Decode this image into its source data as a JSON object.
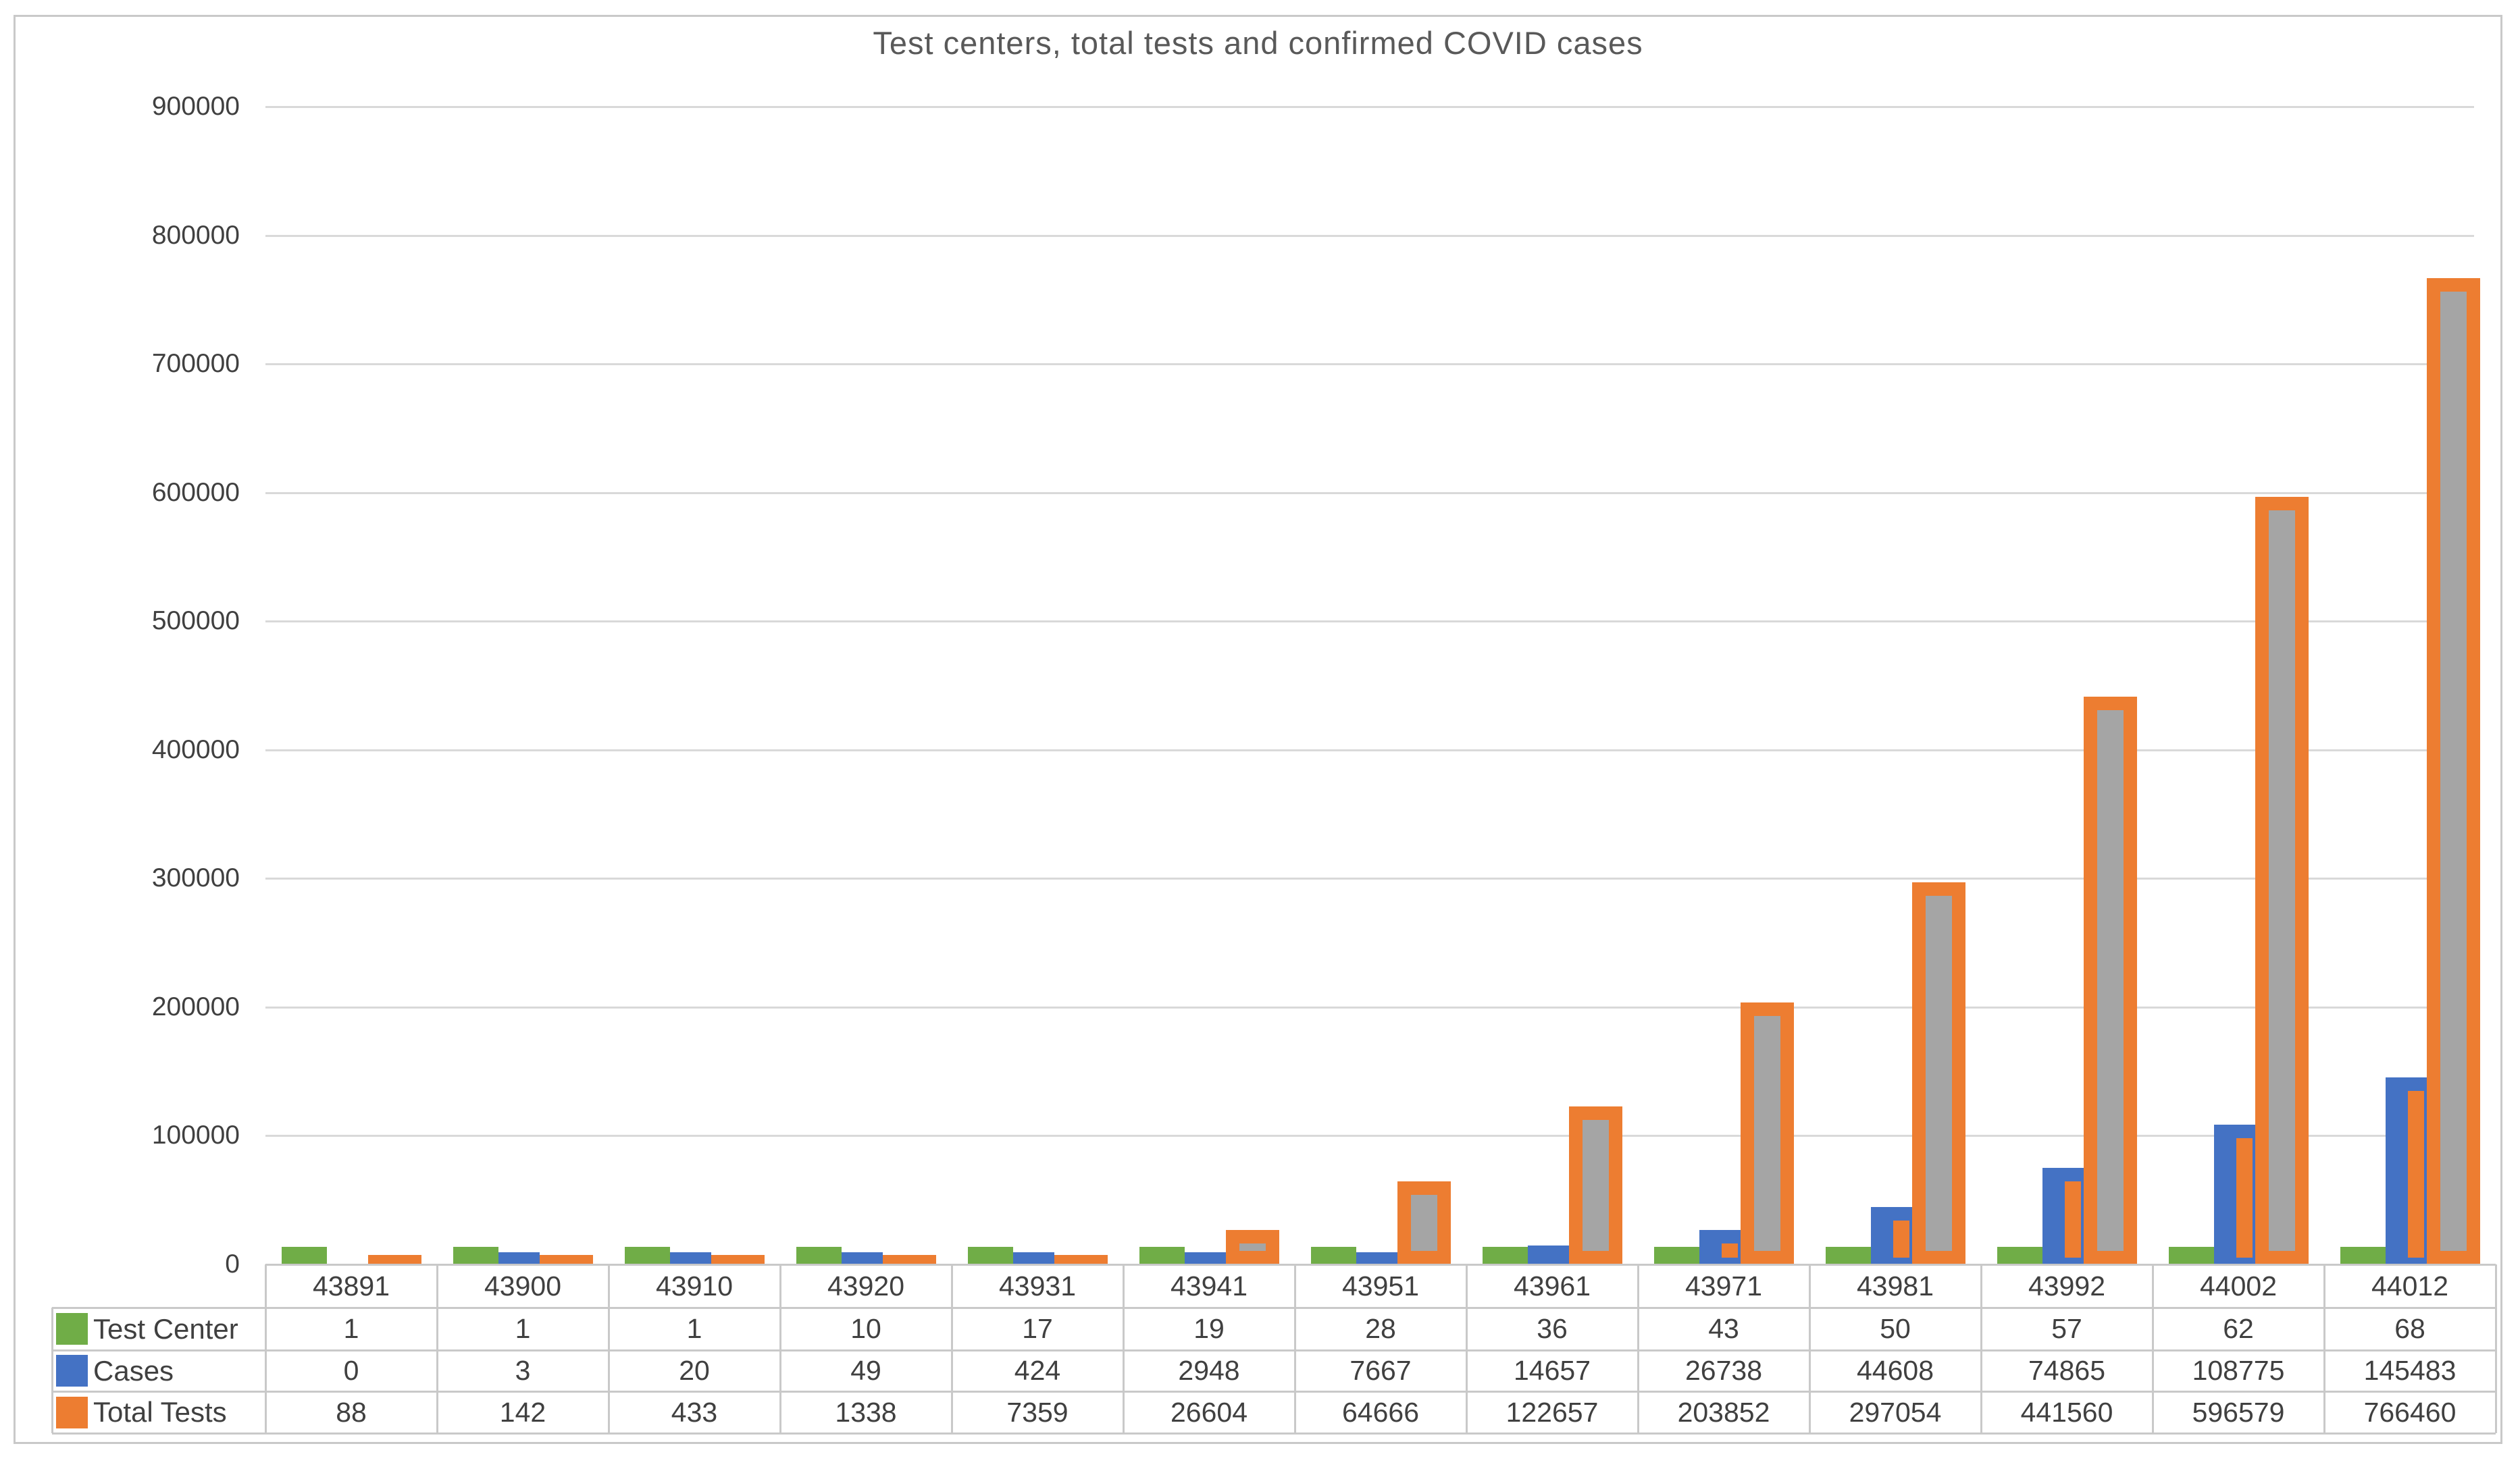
{
  "chart_data": {
    "type": "bar",
    "title": "Test centers, total tests and confirmed COVID cases",
    "categories": [
      "43891",
      "43900",
      "43910",
      "43920",
      "43931",
      "43941",
      "43951",
      "43961",
      "43971",
      "43981",
      "43992",
      "44002",
      "44012"
    ],
    "series": [
      {
        "name": "Test Center",
        "color": "#70AD47",
        "values": [
          1,
          1,
          1,
          10,
          17,
          19,
          28,
          36,
          43,
          50,
          57,
          62,
          68
        ]
      },
      {
        "name": "Cases",
        "color": "#4472C4",
        "values": [
          0,
          3,
          20,
          49,
          424,
          2948,
          7667,
          14657,
          26738,
          44608,
          74865,
          108775,
          145483
        ]
      },
      {
        "name": "Total Tests",
        "color": "#ED7D31",
        "fill": "#A5A5A5",
        "values": [
          88,
          142,
          433,
          1338,
          7359,
          26604,
          64666,
          122657,
          203852,
          297054,
          441560,
          596579,
          766460
        ]
      }
    ],
    "ylim": [
      0,
      900000
    ],
    "ytick_step": 100000,
    "y_tick_labels": [
      "900000",
      "800000",
      "700000",
      "600000",
      "500000",
      "400000",
      "300000",
      "200000",
      "100000",
      "0"
    ],
    "grid": true,
    "legend_position": "bottom-data-table"
  },
  "colors": {
    "green": "#70AD47",
    "blue": "#4472C4",
    "orange": "#ED7D31",
    "gray_fill": "#A5A5A5",
    "gridline": "#D9D9D9",
    "table_border": "#C9C9C9",
    "text": "#404040",
    "title": "#595959",
    "frame": "#C8C8C8"
  }
}
